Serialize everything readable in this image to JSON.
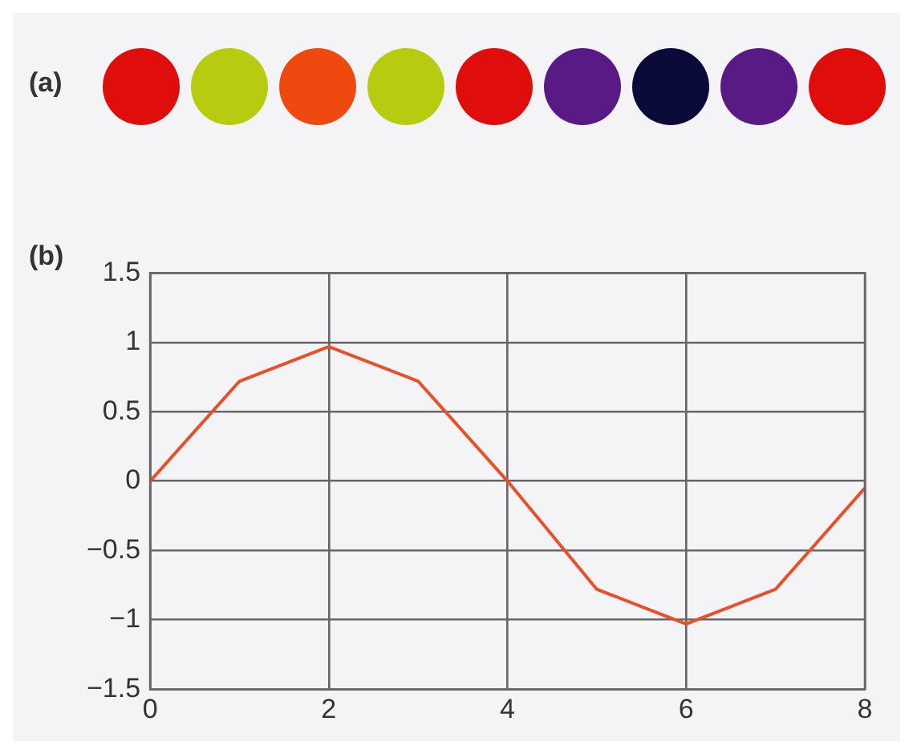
{
  "chart_data": {
    "type": "line",
    "annotations": [
      "(a)",
      "(b)"
    ],
    "x": [
      0,
      1,
      2,
      3,
      4,
      5,
      6,
      7,
      8
    ],
    "series": [
      {
        "color": "#e8502a",
        "values": [
          0,
          0.72,
          0.97,
          0.72,
          0,
          -0.78,
          -1.03,
          -0.78,
          -0.05
        ]
      }
    ],
    "xlim": [
      0,
      8
    ],
    "xticks": [
      0,
      2,
      4,
      6,
      8
    ],
    "ylim": [
      -1.5,
      1.5
    ],
    "yticks": [
      -1.5,
      -1,
      -0.5,
      0,
      0.5,
      1,
      1.5
    ],
    "grid": true,
    "legend": false,
    "marker": "none",
    "line_style": "solid"
  }
}
